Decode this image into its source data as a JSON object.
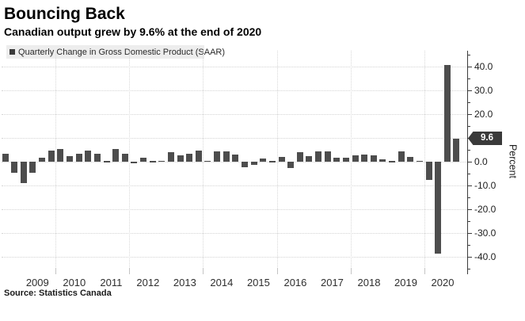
{
  "header": {
    "title": "Bouncing Back",
    "subtitle": "Canadian output grew by 9.6% at the end of 2020"
  },
  "legend": {
    "marker": "square-icon",
    "label": "Quarterly Change in Gross Domestic Product (SAAR)"
  },
  "source": {
    "text": "Source: Statistics Canada"
  },
  "yaxis": {
    "label": "Percent",
    "badge_value": "9.6",
    "tick_labels": [
      "40.0",
      "30.0",
      "20.0",
      "0.0",
      "-10.0",
      "-20.0",
      "-30.0",
      "-40.0"
    ]
  },
  "chart_data": {
    "type": "bar",
    "title": "Bouncing Back",
    "subtitle": "Canadian output grew by 9.6% at the end of 2020",
    "series_name": "Quarterly Change in Gross Domestic Product (SAAR)",
    "ylabel": "Percent",
    "ylim": [
      -45,
      45
    ],
    "y_major_ticks": [
      40,
      30,
      20,
      10,
      0,
      -10,
      -20,
      -30,
      -40
    ],
    "y_minor_tick_step": 5,
    "grid": "dotted horizontal every 10 units; dotted vertical at even-year boundaries",
    "legend_position": "top-left",
    "last_value_badge": 9.6,
    "x_year_labels": [
      "2009",
      "2010",
      "2011",
      "2012",
      "2013",
      "2014",
      "2015",
      "2016",
      "2017",
      "2018",
      "2019",
      "2020"
    ],
    "vertical_gridline_years": [
      2010,
      2012,
      2014,
      2016,
      2018,
      2020
    ],
    "quarters": [
      "2008 Q3",
      "2008 Q4",
      "2009 Q1",
      "2009 Q2",
      "2009 Q3",
      "2009 Q4",
      "2010 Q1",
      "2010 Q2",
      "2010 Q3",
      "2010 Q4",
      "2011 Q1",
      "2011 Q2",
      "2011 Q3",
      "2011 Q4",
      "2012 Q1",
      "2012 Q2",
      "2012 Q3",
      "2012 Q4",
      "2013 Q1",
      "2013 Q2",
      "2013 Q3",
      "2013 Q4",
      "2014 Q1",
      "2014 Q2",
      "2014 Q3",
      "2014 Q4",
      "2015 Q1",
      "2015 Q2",
      "2015 Q3",
      "2015 Q4",
      "2016 Q1",
      "2016 Q2",
      "2016 Q3",
      "2016 Q4",
      "2017 Q1",
      "2017 Q2",
      "2017 Q3",
      "2017 Q4",
      "2018 Q1",
      "2018 Q2",
      "2018 Q3",
      "2018 Q4",
      "2019 Q1",
      "2019 Q2",
      "2019 Q3",
      "2019 Q4",
      "2020 Q1",
      "2020 Q2",
      "2020 Q3",
      "2020 Q4"
    ],
    "values": [
      3.2,
      -4.8,
      -9.0,
      -4.8,
      1.7,
      4.7,
      5.2,
      2.4,
      3.2,
      4.7,
      3.4,
      0.2,
      5.4,
      3.3,
      -0.4,
      1.7,
      0.3,
      0.4,
      4.1,
      2.8,
      3.3,
      4.8,
      0.5,
      4.3,
      4.3,
      3.0,
      -2.2,
      -1.4,
      1.4,
      0.2,
      2.1,
      -2.8,
      3.9,
      2.4,
      4.4,
      4.3,
      1.6,
      1.6,
      2.8,
      3.0,
      2.8,
      1.0,
      0.3,
      4.3,
      1.9,
      0.5,
      -7.5,
      -38.5,
      40.8,
      9.6
    ]
  },
  "colors": {
    "bar": "#4d4d4d",
    "badge_bg": "#3a3a3a",
    "badge_text": "#ffffff",
    "legend_bg": "#ededed",
    "grid": "#d4d4d4",
    "axis": "#3d3d3d",
    "background": "#ffffff"
  }
}
